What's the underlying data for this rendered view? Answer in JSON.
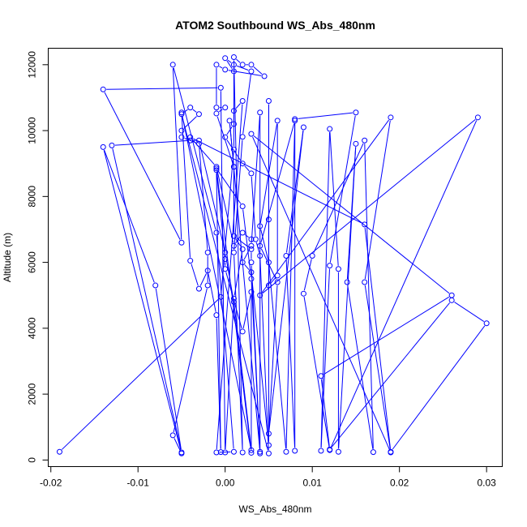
{
  "chart_data": {
    "type": "scatter",
    "title": "ATOM2 Southbound WS_Abs_480nm",
    "xlabel": "WS_Abs_480nm",
    "ylabel": "Altitude (m)",
    "xlim": [
      -0.0203,
      0.0318
    ],
    "ylim": [
      -200,
      12500
    ],
    "x_ticks": [
      -0.02,
      -0.01,
      0.0,
      0.01,
      0.02,
      0.03
    ],
    "x_tick_labels": [
      "-0.02",
      "-0.01",
      "0.00",
      "0.01",
      "0.02",
      "0.03"
    ],
    "y_ticks": [
      0,
      2000,
      4000,
      6000,
      8000,
      10000,
      12000
    ],
    "y_tick_labels": [
      "0",
      "2000",
      "4000",
      "6000",
      "8000",
      "10000",
      "12000"
    ],
    "grid": false,
    "series": [
      {
        "color": "#0000ff",
        "connected": true,
        "points": [
          [
            -0.019,
            250
          ],
          [
            -0.0005,
            4950
          ],
          [
            0.001,
            9430
          ],
          [
            0.001,
            11800
          ],
          [
            0.0,
            12200
          ],
          [
            0.001,
            12000
          ],
          [
            0.003,
            11800
          ],
          [
            0.002,
            9810
          ],
          [
            0.001,
            6300
          ],
          [
            0.002,
            230
          ],
          [
            0.001,
            12230
          ],
          [
            0.002,
            12000
          ],
          [
            0.003,
            12000
          ],
          [
            0.0045,
            11650
          ],
          [
            0.0,
            11850
          ],
          [
            -0.001,
            12000
          ],
          [
            -0.001,
            10700
          ],
          [
            0.0,
            10700
          ],
          [
            -0.001,
            10520
          ],
          [
            0.001,
            8900
          ],
          [
            0.001,
            6800
          ],
          [
            0.002,
            6400
          ],
          [
            0.001,
            4900
          ],
          [
            0.0,
            230
          ],
          [
            -0.0005,
            11300
          ],
          [
            -0.014,
            11250
          ],
          [
            -0.005,
            6600
          ],
          [
            -0.006,
            12000
          ],
          [
            -0.001,
            6900
          ],
          [
            0.001,
            250
          ],
          [
            -0.001,
            230
          ],
          [
            0.002,
            10900
          ],
          [
            0.001,
            10600
          ],
          [
            0.001,
            10200
          ],
          [
            0.0,
            9800
          ],
          [
            0.002,
            9000
          ],
          [
            0.003,
            8700
          ],
          [
            0.0035,
            6700
          ],
          [
            0.004,
            6200
          ],
          [
            0.005,
            200
          ],
          [
            -0.005,
            10500
          ],
          [
            -0.004,
            10700
          ],
          [
            -0.003,
            10500
          ],
          [
            -0.005,
            10000
          ],
          [
            -0.005,
            9800
          ],
          [
            -0.003,
            9600
          ],
          [
            -0.002,
            6300
          ],
          [
            -0.002,
            5300
          ],
          [
            -0.006,
            750
          ],
          [
            -0.005,
            200
          ],
          [
            -0.014,
            9500
          ],
          [
            -0.008,
            5300
          ],
          [
            -0.005,
            230
          ],
          [
            -0.013,
            9550
          ],
          [
            -0.004,
            9700
          ],
          [
            -0.003,
            9700
          ],
          [
            0.0,
            6300
          ],
          [
            0.001,
            4800
          ],
          [
            0.003,
            300
          ],
          [
            -0.005,
            10550
          ],
          [
            -0.004,
            6050
          ],
          [
            -0.003,
            5200
          ],
          [
            -0.002,
            5750
          ],
          [
            -0.001,
            4400
          ],
          [
            -0.0005,
            240
          ],
          [
            -0.001,
            8800
          ],
          [
            0.0,
            6100
          ],
          [
            0.0,
            5800
          ],
          [
            0.002,
            3900
          ],
          [
            0.003,
            5100
          ],
          [
            0.003,
            220
          ],
          [
            -0.001,
            8850
          ],
          [
            0.002,
            7700
          ],
          [
            0.003,
            5500
          ],
          [
            0.004,
            250
          ],
          [
            0.0005,
            10300
          ],
          [
            0.001,
            8900
          ],
          [
            0.001,
            6800
          ],
          [
            0.003,
            6400
          ],
          [
            0.003,
            6000
          ],
          [
            0.004,
            200
          ],
          [
            0.004,
            10550
          ],
          [
            0.003,
            6500
          ],
          [
            0.002,
            6000
          ],
          [
            0.003,
            5700
          ],
          [
            0.005,
            450
          ],
          [
            0.005,
            10900
          ],
          [
            0.005,
            7300
          ],
          [
            0.005,
            5300
          ],
          [
            0.006,
            5600
          ],
          [
            0.006,
            10300
          ],
          [
            0.004,
            7100
          ],
          [
            0.005,
            6000
          ],
          [
            0.007,
            250
          ],
          [
            0.008,
            10300
          ],
          [
            0.004,
            6500
          ],
          [
            0.006,
            5400
          ],
          [
            0.005,
            800
          ],
          [
            0.009,
            10100
          ],
          [
            0.007,
            6200
          ],
          [
            0.008,
            280
          ],
          [
            0.008,
            10350
          ],
          [
            0.015,
            10550
          ],
          [
            0.012,
            5900
          ],
          [
            0.011,
            280
          ],
          [
            0.012,
            10050
          ],
          [
            0.013,
            5800
          ],
          [
            0.013,
            250
          ],
          [
            0.015,
            9600
          ],
          [
            0.014,
            5400
          ],
          [
            0.017,
            240
          ],
          [
            0.016,
            9700
          ],
          [
            0.01,
            6200
          ],
          [
            0.009,
            5050
          ],
          [
            0.012,
            300
          ],
          [
            0.029,
            10400
          ],
          [
            0.004,
            5000
          ],
          [
            0.019,
            10400
          ],
          [
            0.016,
            5400
          ],
          [
            0.019,
            230
          ],
          [
            0.003,
            9900
          ],
          [
            0.026,
            5000
          ],
          [
            0.011,
            2550
          ],
          [
            0.012,
            320
          ],
          [
            0.026,
            4850
          ],
          [
            0.03,
            4150
          ],
          [
            0.019,
            250
          ],
          [
            0.016,
            7150
          ],
          [
            -0.004,
            9800
          ],
          [
            -0.001,
            8900
          ],
          [
            0.001,
            6500
          ],
          [
            0.002,
            6900
          ],
          [
            0.003,
            6700
          ]
        ]
      }
    ]
  }
}
